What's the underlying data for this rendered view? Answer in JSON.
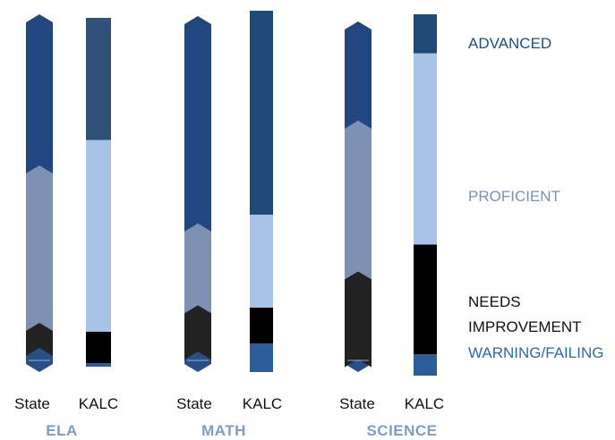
{
  "chart_data": {
    "type": "bar",
    "stacked": true,
    "orientation": "vertical",
    "levels": [
      "WARNING/FAILING",
      "NEEDS IMPROVEMENT",
      "PROFICIENT",
      "ADVANCED"
    ],
    "level_labels": {
      "advanced": "ADVANCED",
      "proficient": "PROFICIENT",
      "needs_line1": "NEEDS",
      "needs_line2": "IMPROVEMENT",
      "warning": "WARNING/FAILING"
    },
    "groups": [
      {
        "name": "ELA",
        "bars": [
          {
            "label": "State",
            "style": "state",
            "values": [
              9,
              7,
              44,
              40
            ]
          },
          {
            "label": "KALC",
            "style": "kalc",
            "values": [
              1,
              9,
              55,
              35
            ]
          }
        ]
      },
      {
        "name": "MATH",
        "bars": [
          {
            "label": "State",
            "style": "state",
            "values": [
              8,
              13,
              23,
              56
            ]
          },
          {
            "label": "KALC",
            "style": "kalc",
            "values": [
              8,
              10,
              26,
              57
            ]
          }
        ]
      },
      {
        "name": "SCIENCE",
        "bars": [
          {
            "label": "State",
            "style": "state",
            "values": [
              6,
              25,
              43,
              26
            ]
          },
          {
            "label": "KALC",
            "style": "kalc",
            "values": [
              6,
              31,
              54,
              11
            ]
          }
        ]
      }
    ],
    "ylim": [
      0,
      100
    ],
    "colors": {
      "state": [
        "#2a4f86",
        "#222222",
        "#7d92b2",
        "#22467f"
      ],
      "kalc_ela": [
        "#2a5c99",
        "#000000",
        "#a9c3e6",
        "#2f5178"
      ],
      "kalc": [
        "#2a5c99",
        "#000000",
        "#a9c3e6",
        "#1f4a77"
      ],
      "legend": {
        "advanced": "#1f4e85",
        "proficient": "#7a93b5",
        "needs": "#111111",
        "warning": "#2f6aa8"
      },
      "group_label": "#7f9cc6"
    }
  }
}
